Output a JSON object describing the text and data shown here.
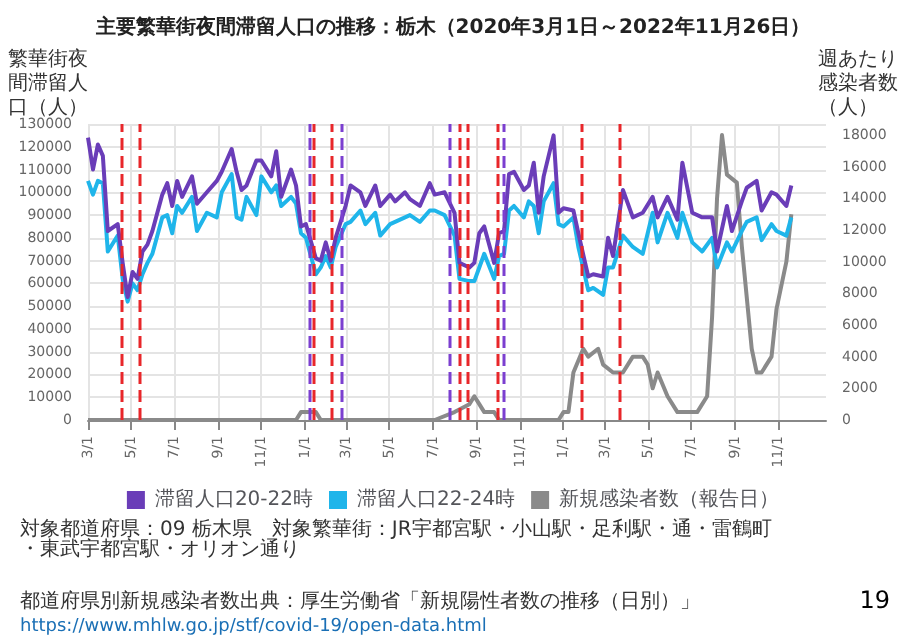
{
  "chart_data": {
    "type": "line",
    "title": "主要繁華街夜間滞留人口の推移：栃木（2020年3月1日～2022年11月26日）",
    "ylabel": "繁華街夜間滞留人口（人）",
    "y2label": "週あたり感染者数（人）",
    "xlim": [
      "2020-03-01",
      "2023-01-08"
    ],
    "xticks": [
      {
        "value": "2020-03-01",
        "label": "3/1"
      },
      {
        "value": "2020-05-01",
        "label": "5/1"
      },
      {
        "value": "2020-07-01",
        "label": "7/1"
      },
      {
        "value": "2020-09-01",
        "label": "9/1"
      },
      {
        "value": "2020-11-01",
        "label": "11/1"
      },
      {
        "value": "2021-01-01",
        "label": "1/1"
      },
      {
        "value": "2021-03-01",
        "label": "3/1"
      },
      {
        "value": "2021-05-01",
        "label": "5/1"
      },
      {
        "value": "2021-07-01",
        "label": "7/1"
      },
      {
        "value": "2021-09-01",
        "label": "9/1"
      },
      {
        "value": "2021-11-01",
        "label": "11/1"
      },
      {
        "value": "2022-01-01",
        "label": "1/1"
      },
      {
        "value": "2022-03-01",
        "label": "3/1"
      },
      {
        "value": "2022-05-01",
        "label": "5/1"
      },
      {
        "value": "2022-07-01",
        "label": "7/1"
      },
      {
        "value": "2022-09-01",
        "label": "9/1"
      },
      {
        "value": "2022-11-01",
        "label": "11/1"
      }
    ],
    "ylim": [
      0,
      130000
    ],
    "yticks": [
      0,
      10000,
      20000,
      30000,
      40000,
      50000,
      60000,
      70000,
      80000,
      90000,
      100000,
      110000,
      120000,
      130000
    ],
    "y2lim": [
      0,
      18700
    ],
    "y2ticks": [
      0,
      2000,
      4000,
      6000,
      8000,
      10000,
      12000,
      14000,
      16000,
      18000
    ],
    "grid": true,
    "legend": "bottom",
    "marker": "none",
    "x": [
      "2020-03-01",
      "2020-03-08",
      "2020-03-15",
      "2020-03-22",
      "2020-03-29",
      "2020-04-12",
      "2020-04-19",
      "2020-04-26",
      "2020-05-03",
      "2020-05-10",
      "2020-05-17",
      "2020-05-24",
      "2020-05-31",
      "2020-06-14",
      "2020-06-21",
      "2020-06-28",
      "2020-07-05",
      "2020-07-12",
      "2020-07-26",
      "2020-08-02",
      "2020-08-16",
      "2020-08-30",
      "2020-09-06",
      "2020-09-20",
      "2020-09-27",
      "2020-10-04",
      "2020-10-11",
      "2020-10-25",
      "2020-11-01",
      "2020-11-15",
      "2020-11-22",
      "2020-11-29",
      "2020-12-13",
      "2020-12-20",
      "2020-12-27",
      "2021-01-03",
      "2021-01-17",
      "2021-01-24",
      "2021-01-31",
      "2021-02-07",
      "2021-02-14",
      "2021-02-28",
      "2021-03-07",
      "2021-03-21",
      "2021-03-28",
      "2021-04-11",
      "2021-04-18",
      "2021-05-02",
      "2021-05-09",
      "2021-05-23",
      "2021-05-30",
      "2021-06-13",
      "2021-06-27",
      "2021-07-04",
      "2021-07-18",
      "2021-08-01",
      "2021-08-08",
      "2021-08-22",
      "2021-08-29",
      "2021-09-05",
      "2021-09-12",
      "2021-09-26",
      "2021-10-03",
      "2021-10-10",
      "2021-10-17",
      "2021-10-24",
      "2021-11-07",
      "2021-11-14",
      "2021-11-21",
      "2021-11-28",
      "2021-12-05",
      "2021-12-19",
      "2021-12-26",
      "2022-01-02",
      "2022-01-16",
      "2022-01-23",
      "2022-02-06",
      "2022-02-13",
      "2022-02-27",
      "2022-03-06",
      "2022-03-13",
      "2022-03-27",
      "2022-04-10",
      "2022-04-24",
      "2022-05-08",
      "2022-05-15",
      "2022-05-29",
      "2022-06-12",
      "2022-06-19",
      "2022-07-03",
      "2022-07-17",
      "2022-07-31",
      "2022-08-07",
      "2022-08-21",
      "2022-08-28",
      "2022-09-11",
      "2022-09-18",
      "2022-10-02",
      "2022-10-09",
      "2022-10-23",
      "2022-10-30",
      "2022-11-13",
      "2022-11-20"
    ],
    "series": [
      {
        "name": "滞留人口20-22時",
        "color": "#6a3db8",
        "values": [
          124000,
          110000,
          121000,
          116000,
          83000,
          86000,
          69000,
          54000,
          65000,
          62000,
          74000,
          77000,
          83000,
          99000,
          104000,
          94000,
          105000,
          98000,
          107000,
          95000,
          100000,
          105000,
          109000,
          119000,
          109000,
          101000,
          103000,
          114000,
          114000,
          107000,
          118000,
          98000,
          110000,
          103000,
          85000,
          86000,
          71000,
          70000,
          78000,
          70000,
          80000,
          94000,
          103000,
          100000,
          94000,
          103000,
          94000,
          99000,
          96000,
          100000,
          97000,
          94000,
          104000,
          99000,
          100000,
          91000,
          69000,
          67000,
          69000,
          82000,
          85000,
          69000,
          82000,
          83000,
          108000,
          109000,
          101000,
          103000,
          113000,
          91000,
          107000,
          125000,
          91000,
          93000,
          92000,
          82000,
          63000,
          64000,
          63000,
          80000,
          72000,
          101000,
          89000,
          91000,
          98000,
          89000,
          98000,
          88000,
          113000,
          91000,
          89000,
          89000,
          74000,
          94000,
          83000,
          96000,
          102000,
          105000,
          92000,
          100000,
          99000,
          94000,
          103000
        ]
      },
      {
        "name": "滞留人口22-24時",
        "color": "#1fb5ea",
        "values": [
          105000,
          99000,
          105000,
          104000,
          74000,
          81000,
          62000,
          52000,
          60000,
          57000,
          64000,
          69000,
          73000,
          89000,
          90000,
          82000,
          94000,
          91000,
          98000,
          83000,
          91000,
          89000,
          100000,
          108000,
          89000,
          88000,
          98000,
          90000,
          107000,
          100000,
          103000,
          94000,
          98000,
          95000,
          82000,
          80000,
          64000,
          67000,
          72000,
          67000,
          76000,
          86000,
          87000,
          92000,
          86000,
          91000,
          81000,
          86000,
          87000,
          89000,
          90000,
          87000,
          92000,
          92000,
          90000,
          81000,
          62000,
          61000,
          61000,
          67000,
          73000,
          62000,
          72000,
          73000,
          92000,
          94000,
          89000,
          96000,
          94000,
          82000,
          96000,
          104000,
          86000,
          85000,
          89000,
          76000,
          57000,
          58000,
          55000,
          67000,
          67000,
          81000,
          76000,
          73000,
          91000,
          78000,
          91000,
          80000,
          91000,
          78000,
          74000,
          80000,
          67000,
          78000,
          74000,
          83000,
          87000,
          89000,
          79000,
          86000,
          83000,
          81000,
          89000
        ]
      },
      {
        "name": "新規感染者数（報告日）",
        "color": "#8a8a8a",
        "axis": "y2",
        "x": [
          "2020-03-01",
          "2020-12-20",
          "2020-12-27",
          "2021-01-03",
          "2021-01-10",
          "2021-01-17",
          "2021-01-24",
          "2021-01-31",
          "2021-02-14",
          "2021-04-25",
          "2021-05-23",
          "2021-07-04",
          "2021-08-01",
          "2021-08-22",
          "2021-08-29",
          "2021-09-05",
          "2021-09-12",
          "2021-09-26",
          "2021-10-03",
          "2021-10-17",
          "2021-10-31",
          "2021-12-05",
          "2021-12-26",
          "2022-01-02",
          "2022-01-09",
          "2022-01-16",
          "2022-01-30",
          "2022-02-06",
          "2022-02-20",
          "2022-02-27",
          "2022-03-13",
          "2022-03-27",
          "2022-04-10",
          "2022-04-24",
          "2022-05-01",
          "2022-05-08",
          "2022-05-15",
          "2022-05-29",
          "2022-06-12",
          "2022-06-26",
          "2022-07-10",
          "2022-07-24",
          "2022-07-31",
          "2022-08-07",
          "2022-08-14",
          "2022-08-21",
          "2022-09-04",
          "2022-09-11",
          "2022-09-25",
          "2022-10-02",
          "2022-10-09",
          "2022-10-23",
          "2022-10-30",
          "2022-11-13",
          "2022-11-20"
        ],
        "values": [
          0,
          0,
          500,
          500,
          500,
          500,
          0,
          0,
          0,
          0,
          0,
          0,
          500,
          1000,
          1500,
          1000,
          500,
          500,
          0,
          0,
          0,
          0,
          0,
          500,
          500,
          3000,
          4500,
          4000,
          4500,
          3500,
          3000,
          3000,
          4000,
          4000,
          3500,
          2000,
          3000,
          1500,
          500,
          500,
          500,
          1500,
          6500,
          14000,
          18000,
          15500,
          15000,
          11000,
          4500,
          3000,
          3000,
          4000,
          7000,
          10000,
          13000
        ]
      }
    ],
    "ref_lines": [
      {
        "axis": "x",
        "value": "2020-04-16",
        "color": "#e8262a",
        "line_style": "dashed"
      },
      {
        "axis": "x",
        "value": "2020-05-14",
        "color": "#e8262a",
        "line_style": "dashed"
      },
      {
        "axis": "x",
        "value": "2021-01-08",
        "color": "#7b3fd0",
        "line_style": "dashed"
      },
      {
        "axis": "x",
        "value": "2021-01-14",
        "color": "#e8262a",
        "line_style": "dashed"
      },
      {
        "axis": "x",
        "value": "2021-02-07",
        "color": "#e8262a",
        "line_style": "dashed"
      },
      {
        "axis": "x",
        "value": "2021-02-22",
        "color": "#7b3fd0",
        "line_style": "dashed"
      },
      {
        "axis": "x",
        "value": "2021-07-24",
        "color": "#7b3fd0",
        "line_style": "dashed"
      },
      {
        "axis": "x",
        "value": "2021-08-08",
        "color": "#e8262a",
        "line_style": "dashed"
      },
      {
        "axis": "x",
        "value": "2021-08-20",
        "color": "#e8262a",
        "line_style": "dashed"
      },
      {
        "axis": "x",
        "value": "2021-09-30",
        "color": "#e8262a",
        "line_style": "dashed"
      },
      {
        "axis": "x",
        "value": "2021-10-08",
        "color": "#7b3fd0",
        "line_style": "dashed"
      },
      {
        "axis": "x",
        "value": "2022-01-27",
        "color": "#e8262a",
        "line_style": "dashed"
      },
      {
        "axis": "x",
        "value": "2022-03-21",
        "color": "#e8262a",
        "line_style": "dashed"
      }
    ],
    "annotations": [
      "対象都道府県：09 栃木県　対象繁華街：JR宇都宮駅・小山駅・足利駅・通・雷鶴町・東武宇都宮駅・オリオン通り",
      "都道府県別新規感染者数出典：厚生労働省「新規陽性者数の推移（日別）」",
      "https://www.mhlw.go.jp/stf/covid-19/open-data.html",
      "19"
    ]
  }
}
